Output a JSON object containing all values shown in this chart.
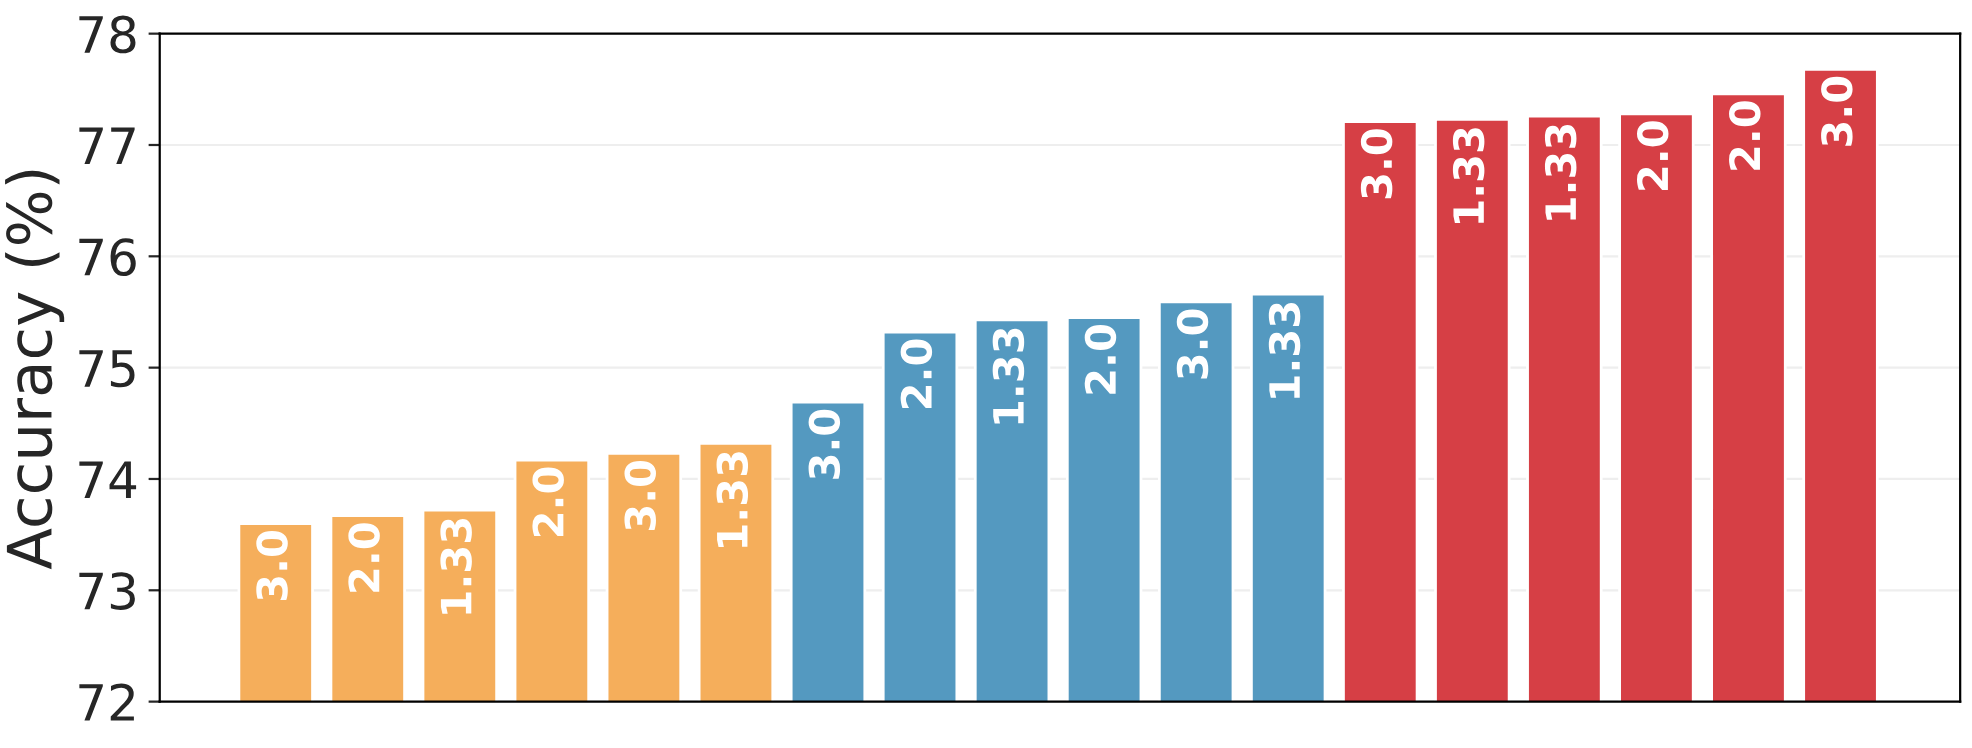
{
  "chart_data": {
    "type": "bar",
    "ylabel": "Accuracy (%)",
    "categories": [
      null,
      null,
      null,
      null,
      null,
      null,
      null,
      null,
      null,
      null,
      null,
      null,
      null,
      null,
      null,
      null,
      null,
      null
    ],
    "values": [
      73.6,
      73.67,
      73.72,
      74.17,
      74.23,
      74.32,
      74.69,
      75.32,
      75.43,
      75.45,
      75.59,
      75.66,
      77.21,
      77.23,
      77.26,
      77.28,
      77.46,
      77.68
    ],
    "annotations": [
      "3.0",
      "2.0",
      "1.33",
      "2.0",
      "3.0",
      "1.33",
      "3.0",
      "2.0",
      "1.33",
      "2.0",
      "3.0",
      "1.33",
      "3.0",
      "1.33",
      "1.33",
      "2.0",
      "2.0",
      "3.0"
    ],
    "colors": [
      "#f5ae5b",
      "#f5ae5b",
      "#f5ae5b",
      "#f5ae5b",
      "#f5ae5b",
      "#f5ae5b",
      "#5499c0",
      "#5499c0",
      "#5499c0",
      "#5499c0",
      "#5499c0",
      "#5499c0",
      "#d63f45",
      "#d63f45",
      "#d63f45",
      "#d63f45",
      "#d63f45",
      "#d63f45"
    ],
    "ylim": [
      72,
      78
    ],
    "yticks": [
      72,
      73,
      74,
      75,
      76,
      77,
      78
    ],
    "grid": "y",
    "tick_labels": "y"
  }
}
